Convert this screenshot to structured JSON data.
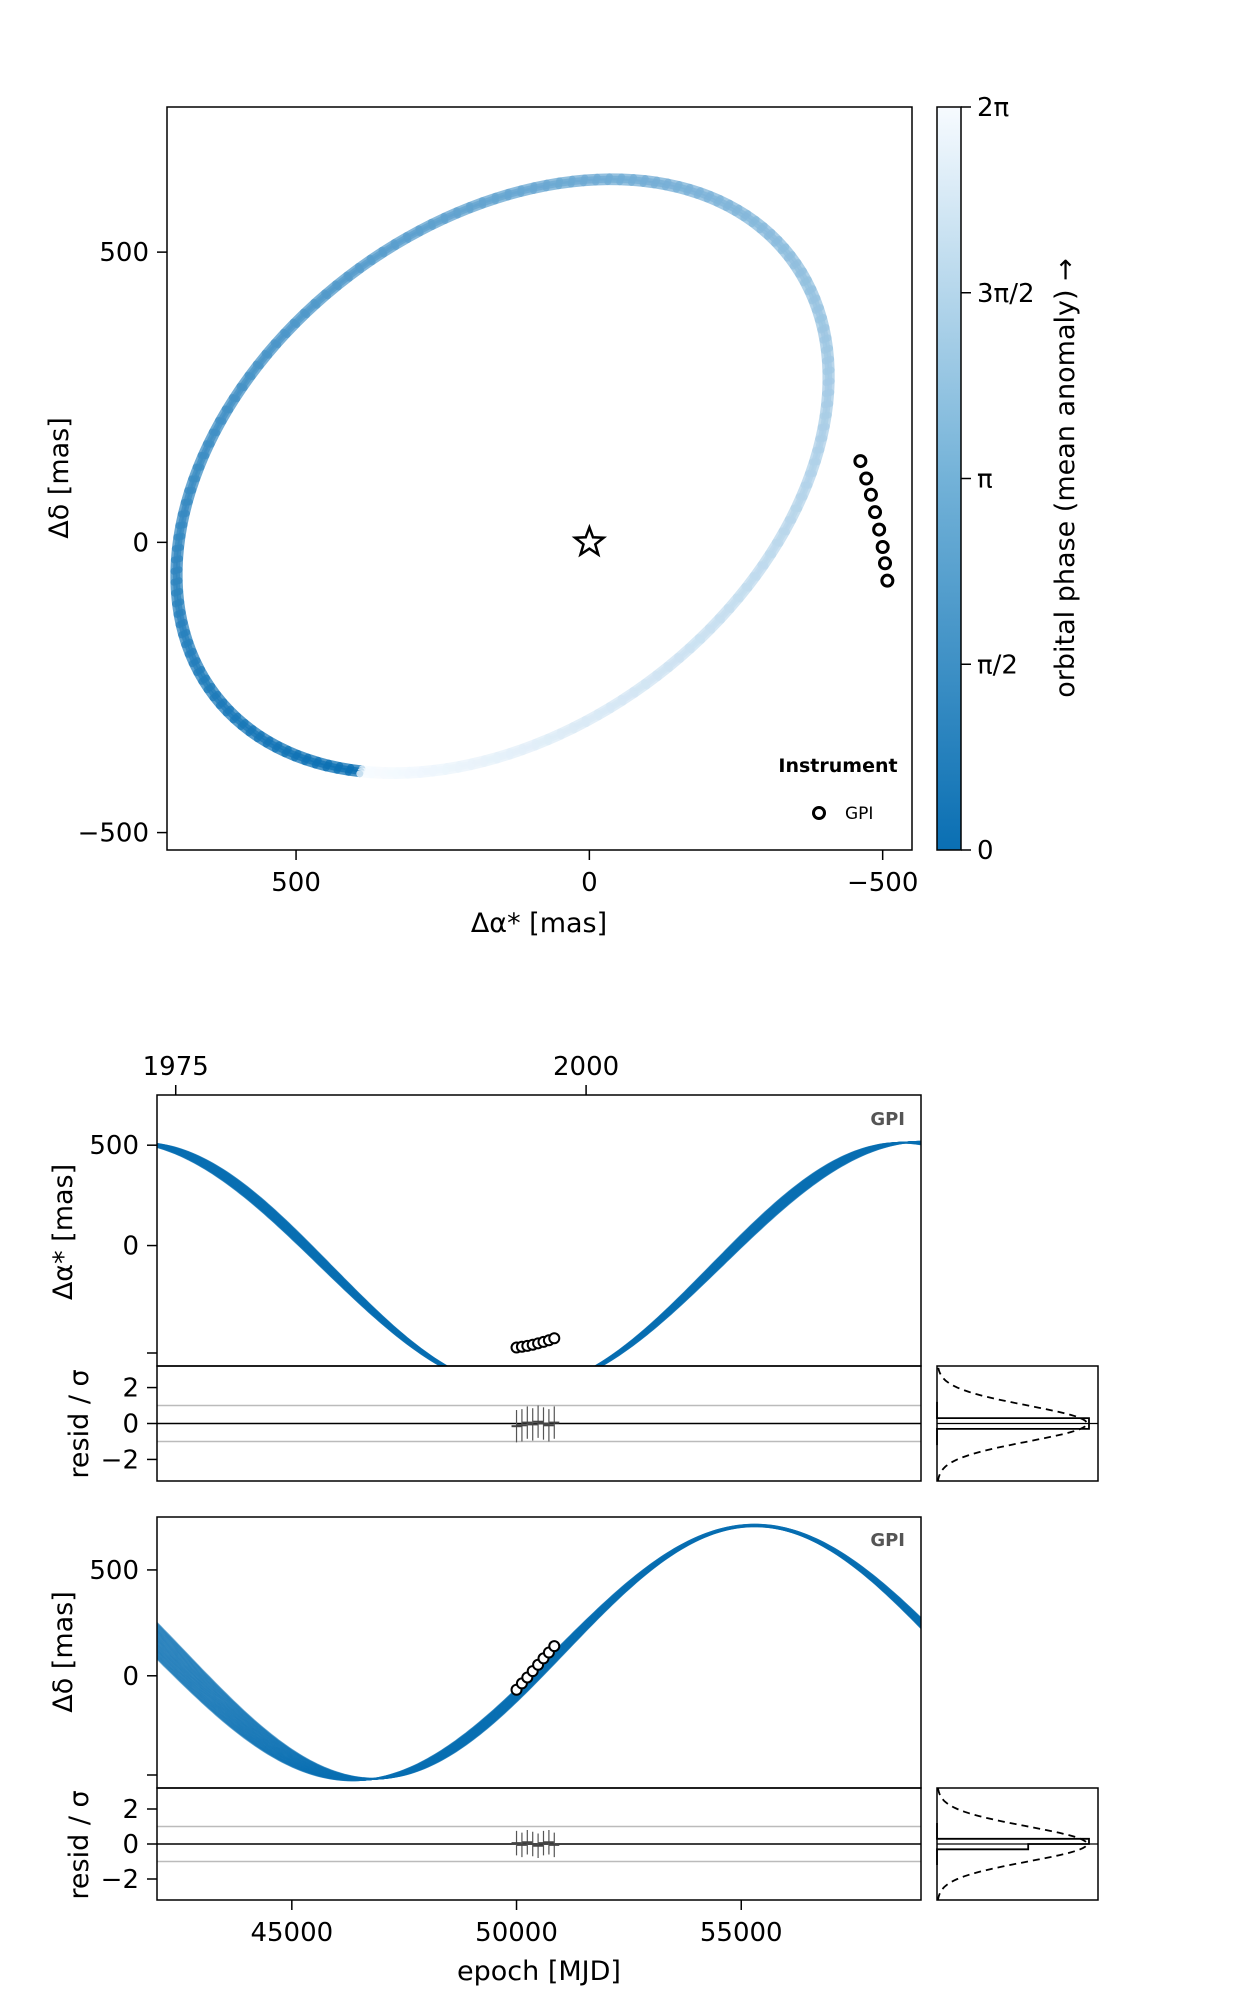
{
  "chart_data": [
    {
      "type": "scatter",
      "panel": "orbit-sky",
      "xlabel": "Δα* [mas]",
      "ylabel": "Δδ [mas]",
      "xlim": [
        720,
        -550
      ],
      "ylim": [
        -530,
        750
      ],
      "x_axis_reversed": true,
      "xticks": [
        500,
        0,
        -500
      ],
      "yticks": [
        500,
        0,
        -500
      ],
      "x_tick_labels": [
        "500",
        "0",
        "−500"
      ],
      "y_tick_labels": [
        "500",
        "0",
        "−500"
      ],
      "orbit_ellipse": {
        "center": [
          148,
          114
        ],
        "semi_major": 619,
        "semi_minor": 433,
        "rotation_deg": -38
      },
      "star": {
        "x": 0,
        "y": 0
      },
      "points": {
        "x": [
          -462,
          -472,
          -480,
          -487,
          -494,
          -500,
          -504,
          -508
        ],
        "y": [
          140,
          110,
          82,
          52,
          22,
          -8,
          -36,
          -66
        ]
      },
      "colorbar": {
        "label": "orbital phase (mean anomaly) →",
        "tick_labels": [
          "0",
          "π/2",
          "π",
          "3π/2",
          "2π"
        ],
        "ticks": [
          0,
          1.5708,
          3.1416,
          4.7124,
          6.2832
        ],
        "range": [
          0,
          6.2832
        ],
        "color_low": "#0a6fb3",
        "color_high": "#f7fbff"
      },
      "legend": {
        "title": "Instrument",
        "items": [
          "GPI"
        ],
        "placement": "bottom-right"
      }
    },
    {
      "type": "line",
      "panel": "ra-vs-time",
      "ylabel": "Δα* [mas]",
      "top_axis_tick_labels": [
        "1975",
        "2000"
      ],
      "top_axis_ticks_year": [
        1975,
        2000
      ],
      "xlim": [
        42000,
        59000
      ],
      "ylim": [
        -600,
        750
      ],
      "yticks": [
        500,
        0
      ],
      "y_tick_labels": [
        "500",
        "0"
      ],
      "instrument_label": "GPI",
      "curve_color": "#0a6fb3",
      "points": {
        "x": [
          50000,
          50120,
          50240,
          50360,
          50480,
          50600,
          50720,
          50840
        ],
        "y": [
          -508,
          -504,
          -500,
          -494,
          -487,
          -480,
          -472,
          -462
        ]
      }
    },
    {
      "type": "scatter",
      "panel": "ra-residuals",
      "ylabel": "resid / σ",
      "xlim": [
        42000,
        59000
      ],
      "ylim": [
        -3.2,
        3.2
      ],
      "yticks": [
        2,
        0,
        -2
      ],
      "y_tick_labels": [
        "2",
        "0",
        "−2"
      ],
      "points": {
        "x": [
          50000,
          50120,
          50240,
          50360,
          50480,
          50600,
          50720,
          50840
        ],
        "y": [
          -0.15,
          -0.1,
          0.05,
          -0.05,
          0.1,
          0.0,
          -0.1,
          0.05
        ],
        "err": [
          0.9,
          0.9,
          0.9,
          0.9,
          0.9,
          0.9,
          0.9,
          0.9
        ]
      },
      "reference_lines": [
        1,
        -1
      ]
    },
    {
      "type": "line",
      "panel": "dec-vs-time",
      "ylabel": "Δδ [mas]",
      "xlim": [
        42000,
        59000
      ],
      "ylim": [
        -530,
        750
      ],
      "yticks": [
        500,
        0
      ],
      "y_tick_labels": [
        "500",
        "0"
      ],
      "instrument_label": "GPI",
      "curve_color": "#0a6fb3",
      "points": {
        "x": [
          50000,
          50120,
          50240,
          50360,
          50480,
          50600,
          50720,
          50840
        ],
        "y": [
          -66,
          -36,
          -8,
          22,
          52,
          82,
          110,
          140
        ]
      }
    },
    {
      "type": "scatter",
      "panel": "dec-residuals",
      "ylabel": "resid / σ",
      "xlabel": "epoch [MJD]",
      "xlim": [
        42000,
        59000
      ],
      "ylim": [
        -3.2,
        3.2
      ],
      "xticks": [
        45000,
        50000,
        55000
      ],
      "x_tick_labels": [
        "45000",
        "50000",
        "55000"
      ],
      "yticks": [
        2,
        0,
        -2
      ],
      "y_tick_labels": [
        "2",
        "0",
        "−2"
      ],
      "points": {
        "x": [
          50000,
          50120,
          50240,
          50360,
          50480,
          50600,
          50720,
          50840
        ],
        "y": [
          0.05,
          -0.05,
          0.1,
          0.0,
          -0.1,
          0.05,
          0.1,
          -0.05
        ],
        "err": [
          0.7,
          0.7,
          0.7,
          0.7,
          0.7,
          0.7,
          0.7,
          0.7
        ]
      },
      "reference_lines": [
        1,
        -1
      ]
    }
  ]
}
